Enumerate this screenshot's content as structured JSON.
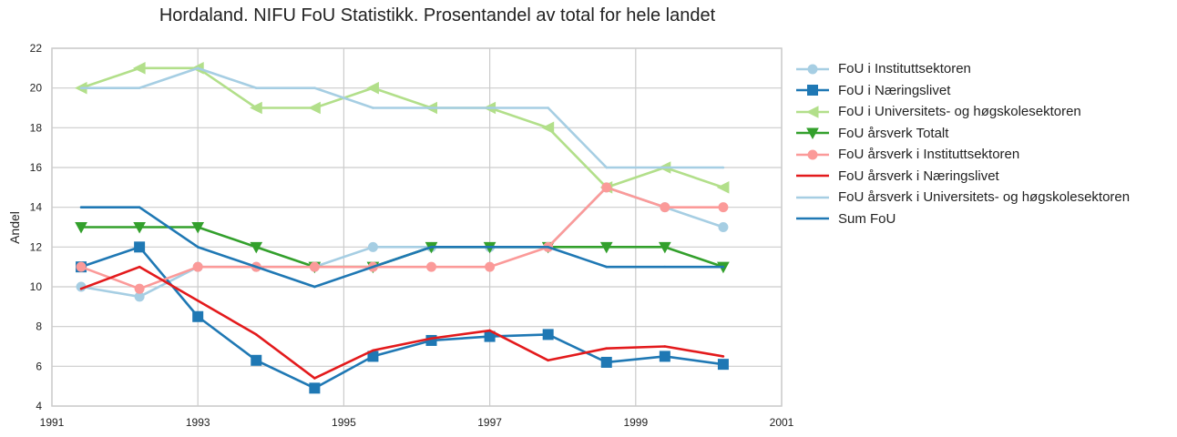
{
  "chart_data": {
    "type": "line",
    "title": "Hordaland. NIFU FoU Statistikk. Prosentandel av total for hele landet",
    "xlabel": "",
    "ylabel": "Andel",
    "xlim": [
      1991,
      2001
    ],
    "ylim": [
      4,
      22
    ],
    "xticks": [
      "1991",
      "1993",
      "1995",
      "1997",
      "1999",
      "2001"
    ],
    "yticks": [
      "4",
      "6",
      "8",
      "10",
      "12",
      "14",
      "16",
      "18",
      "20",
      "22"
    ],
    "grid": true,
    "legend_position": "outside-right",
    "series": [
      {
        "name": "FoU i Instituttsektoren",
        "color": "#a6cee3",
        "marker": "circle",
        "x": [
          1991.4,
          1992.2,
          1993.0,
          1993.8,
          1994.6,
          1995.4,
          1996.2,
          1997.0,
          1997.8,
          1998.6,
          1999.4,
          2000.2
        ],
        "y": [
          10.0,
          9.5,
          11.0,
          11.0,
          11.0,
          12.0,
          12.0,
          12.0,
          12.0,
          15.0,
          14.0,
          13.0
        ]
      },
      {
        "name": "FoU i Næringslivet",
        "color": "#1f78b4",
        "marker": "square",
        "x": [
          1991.4,
          1992.2,
          1993.0,
          1993.8,
          1994.6,
          1995.4,
          1996.2,
          1997.0,
          1997.8,
          1998.6,
          1999.4,
          2000.2
        ],
        "y": [
          11.0,
          12.0,
          8.5,
          6.3,
          4.9,
          6.5,
          7.3,
          7.5,
          7.6,
          6.2,
          6.5,
          6.1
        ]
      },
      {
        "name": "FoU i Universitets- og høgskolesektoren",
        "color": "#b2df8a",
        "marker": "triangle-left",
        "x": [
          1991.4,
          1992.2,
          1993.0,
          1993.8,
          1994.6,
          1995.4,
          1996.2,
          1997.0,
          1997.8,
          1998.6,
          1999.4,
          2000.2
        ],
        "y": [
          20.0,
          21.0,
          21.0,
          19.0,
          19.0,
          20.0,
          19.0,
          19.0,
          18.0,
          15.0,
          16.0,
          15.0
        ]
      },
      {
        "name": "FoU årsverk Totalt",
        "color": "#33a02c",
        "marker": "triangle-down",
        "x": [
          1991.4,
          1992.2,
          1993.0,
          1993.8,
          1994.6,
          1995.4,
          1996.2,
          1997.0,
          1997.8,
          1998.6,
          1999.4,
          2000.2
        ],
        "y": [
          13.0,
          13.0,
          13.0,
          12.0,
          11.0,
          11.0,
          12.0,
          12.0,
          12.0,
          12.0,
          12.0,
          11.0
        ]
      },
      {
        "name": "FoU årsverk i Instituttsektoren",
        "color": "#fb9a99",
        "marker": "circle",
        "x": [
          1991.4,
          1992.2,
          1993.0,
          1993.8,
          1994.6,
          1995.4,
          1996.2,
          1997.0,
          1997.8,
          1998.6,
          1999.4,
          2000.2
        ],
        "y": [
          11.0,
          9.9,
          11.0,
          11.0,
          11.0,
          11.0,
          11.0,
          11.0,
          12.0,
          15.0,
          14.0,
          14.0
        ]
      },
      {
        "name": "FoU årsverk i Næringslivet",
        "color": "#e31a1c",
        "marker": "none",
        "x": [
          1991.4,
          1992.2,
          1993.0,
          1993.8,
          1994.6,
          1995.4,
          1996.2,
          1997.0,
          1997.8,
          1998.6,
          1999.4,
          2000.2
        ],
        "y": [
          9.9,
          11.0,
          9.3,
          7.6,
          5.4,
          6.8,
          7.4,
          7.8,
          6.3,
          6.9,
          7.0,
          6.5
        ]
      },
      {
        "name": "FoU årsverk i Universitets- og høgskolesektoren",
        "color": "#a6cee3",
        "marker": "none",
        "x": [
          1991.4,
          1992.2,
          1993.0,
          1993.8,
          1994.6,
          1995.4,
          1996.2,
          1997.0,
          1997.8,
          1998.6,
          1999.4,
          2000.2
        ],
        "y": [
          20.0,
          20.0,
          21.0,
          20.0,
          20.0,
          19.0,
          19.0,
          19.0,
          19.0,
          16.0,
          16.0,
          16.0
        ]
      },
      {
        "name": "Sum FoU",
        "color": "#1f78b4",
        "marker": "none",
        "x": [
          1991.4,
          1992.2,
          1993.0,
          1993.8,
          1994.6,
          1995.4,
          1996.2,
          1997.0,
          1997.8,
          1998.6,
          1999.4,
          2000.2
        ],
        "y": [
          14.0,
          14.0,
          12.0,
          11.0,
          10.0,
          11.0,
          12.0,
          12.0,
          12.0,
          11.0,
          11.0,
          11.0
        ]
      }
    ]
  }
}
